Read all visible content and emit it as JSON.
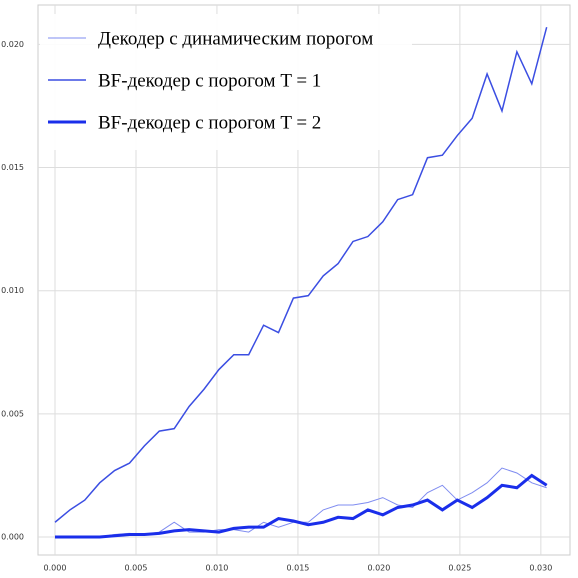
{
  "chart_data": {
    "type": "line",
    "x": [
      0,
      0.00092,
      0.00184,
      0.00276,
      0.00368,
      0.0046,
      0.00552,
      0.00644,
      0.00736,
      0.00828,
      0.0092,
      0.01012,
      0.01104,
      0.01196,
      0.01288,
      0.0138,
      0.01472,
      0.01564,
      0.01656,
      0.01748,
      0.0184,
      0.01932,
      0.02024,
      0.02116,
      0.02208,
      0.023,
      0.02392,
      0.02484,
      0.02576,
      0.02668,
      0.0276,
      0.02852,
      0.02944,
      0.03036
    ],
    "series": [
      {
        "name": "Декодер с динамическим порогом",
        "color": "#7f8cf0",
        "values": [
          0,
          0,
          0,
          0,
          0.0001,
          0.00015,
          0.0001,
          0.0002,
          0.0006,
          0.0002,
          0.0002,
          0.0003,
          0.0003,
          0.0002,
          0.0006,
          0.0004,
          0.0006,
          0.0006,
          0.0011,
          0.0013,
          0.0013,
          0.0014,
          0.0016,
          0.0013,
          0.0012,
          0.0018,
          0.0021,
          0.0015,
          0.0018,
          0.0022,
          0.0028,
          0.0026,
          0.0022,
          0.002
        ]
      },
      {
        "name": "BF-декодер с порогом T = 1",
        "color": "#3b4ee2",
        "values": [
          0.0006,
          0.0011,
          0.0015,
          0.0022,
          0.0027,
          0.003,
          0.0037,
          0.0043,
          0.0044,
          0.0053,
          0.006,
          0.0068,
          0.0074,
          0.0074,
          0.0086,
          0.0083,
          0.0097,
          0.0098,
          0.0106,
          0.0111,
          0.012,
          0.0122,
          0.0128,
          0.0137,
          0.0139,
          0.0154,
          0.0155,
          0.0163,
          0.017,
          0.0188,
          0.0173,
          0.0197,
          0.0184,
          0.0207
        ]
      },
      {
        "name": "BF-декодер с порогом T = 2",
        "color": "#1a2eea",
        "values": [
          0,
          0,
          0,
          0,
          5e-05,
          0.0001,
          0.0001,
          0.00015,
          0.00025,
          0.0003,
          0.00025,
          0.0002,
          0.00035,
          0.0004,
          0.0004,
          0.00075,
          0.00065,
          0.0005,
          0.0006,
          0.0008,
          0.00075,
          0.0011,
          0.0009,
          0.0012,
          0.0013,
          0.0015,
          0.0011,
          0.0015,
          0.0012,
          0.0016,
          0.0021,
          0.002,
          0.0025,
          0.0021
        ]
      }
    ],
    "xlim": [
      -0.00105,
      0.0318
    ],
    "ylim": [
      -0.00073,
      0.0216
    ],
    "xticks": [
      {
        "value": 0,
        "label": "0.000"
      },
      {
        "value": 0.005,
        "label": "0.005"
      },
      {
        "value": 0.01,
        "label": "0.010"
      },
      {
        "value": 0.015,
        "label": "0.015"
      },
      {
        "value": 0.02,
        "label": "0.020"
      },
      {
        "value": 0.025,
        "label": "0.025"
      },
      {
        "value": 0.03,
        "label": "0.030"
      }
    ],
    "yticks": [
      {
        "value": 0,
        "label": "0.000"
      },
      {
        "value": 0.005,
        "label": "0.005"
      },
      {
        "value": 0.01,
        "label": "0.010"
      },
      {
        "value": 0.015,
        "label": "0.015"
      },
      {
        "value": 0.02,
        "label": "0.020"
      }
    ],
    "grid": true,
    "legend": "upper left"
  }
}
